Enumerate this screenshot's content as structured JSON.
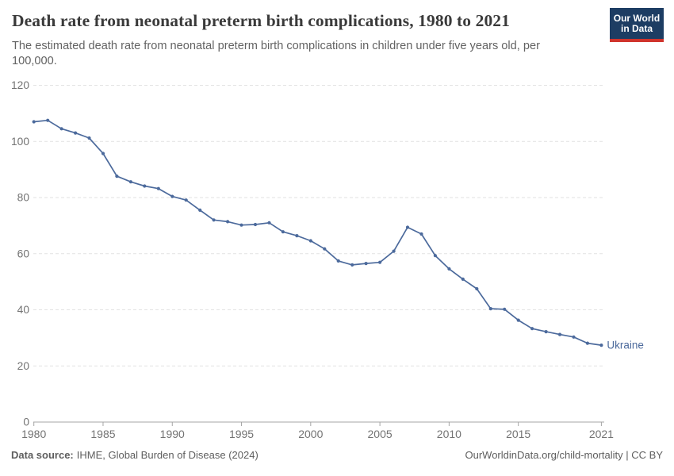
{
  "header": {
    "title": "Death rate from neonatal preterm birth complications, 1980 to 2021",
    "subtitle": "The estimated death rate from neonatal preterm birth complications in children under five years old, per 100,000."
  },
  "logo": {
    "line1": "Our World",
    "line2": "in Data"
  },
  "footer": {
    "source_label": "Data source:",
    "source_value": "IHME, Global Burden of Disease (2024)",
    "link": "OurWorldinData.org/child-mortality | CC BY"
  },
  "chart_data": {
    "type": "line",
    "title": "Death rate from neonatal preterm birth complications, 1980 to 2021",
    "xlabel": "",
    "ylabel": "",
    "xlim": [
      1980,
      2021
    ],
    "ylim": [
      0,
      120
    ],
    "xticks": [
      1980,
      1985,
      1990,
      1995,
      2000,
      2005,
      2010,
      2015,
      2021
    ],
    "yticks": [
      0,
      20,
      40,
      60,
      80,
      100,
      120
    ],
    "grid": "horizontal-dashed",
    "legend_position": "end-of-line-label",
    "x": [
      1980,
      1981,
      1982,
      1983,
      1984,
      1985,
      1986,
      1987,
      1988,
      1989,
      1990,
      1991,
      1992,
      1993,
      1994,
      1995,
      1996,
      1997,
      1998,
      1999,
      2000,
      2001,
      2002,
      2003,
      2004,
      2005,
      2006,
      2007,
      2008,
      2009,
      2010,
      2011,
      2012,
      2013,
      2014,
      2015,
      2016,
      2017,
      2018,
      2019,
      2020,
      2021
    ],
    "series": [
      {
        "name": "Ukraine",
        "color": "#4C6A9C",
        "values": [
          107.0,
          107.5,
          104.5,
          103.0,
          101.2,
          95.7,
          87.6,
          85.6,
          84.1,
          83.2,
          80.4,
          79.1,
          75.5,
          72.0,
          71.4,
          70.2,
          70.4,
          71.0,
          67.8,
          66.4,
          64.6,
          61.7,
          57.4,
          56.0,
          56.5,
          56.9,
          60.9,
          69.4,
          67.0,
          59.3,
          54.6,
          50.9,
          47.5,
          40.4,
          40.2,
          36.3,
          33.3,
          32.2,
          31.2,
          30.3,
          28.1,
          27.4
        ]
      }
    ],
    "colors": {
      "grid": "#e2e2e2",
      "axis": "#a5a5a5",
      "tick_label": "#737373"
    }
  }
}
